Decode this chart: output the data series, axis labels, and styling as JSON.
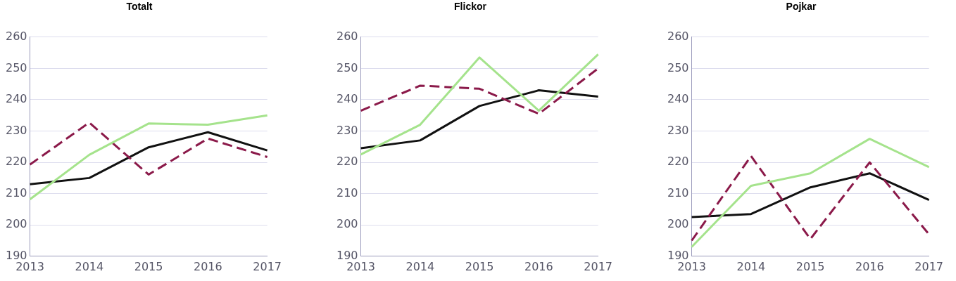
{
  "chart_data": [
    {
      "type": "line",
      "title": "Totalt",
      "categories": [
        "2013",
        "2014",
        "2015",
        "2016",
        "2017"
      ],
      "ylim": [
        190,
        260
      ],
      "yticks": [
        190,
        200,
        210,
        220,
        230,
        240,
        250,
        260
      ],
      "grid": "y",
      "legend": false,
      "marker": "none",
      "series": [
        {
          "color": "#a5e38c",
          "values": [
            208.2,
            222.4,
            232.4,
            232,
            235
          ]
        },
        {
          "color": "#8b1a4a",
          "line_style": "dashed",
          "values": [
            219.3,
            232.7,
            216.1,
            227.6,
            221.7
          ]
        },
        {
          "color": "#111111",
          "values": [
            213,
            215,
            224.8,
            229.6,
            223.8
          ]
        }
      ]
    },
    {
      "type": "line",
      "title": "Flickor",
      "categories": [
        "2013",
        "2014",
        "2015",
        "2016",
        "2017"
      ],
      "ylim": [
        190,
        260
      ],
      "yticks": [
        190,
        200,
        210,
        220,
        230,
        240,
        250,
        260
      ],
      "grid": "y",
      "legend": false,
      "marker": "none",
      "series": [
        {
          "color": "#a5e38c",
          "values": [
            222.5,
            232,
            253.5,
            236.5,
            254.5
          ]
        },
        {
          "color": "#8b1a4a",
          "line_style": "dashed",
          "values": [
            236.5,
            244.5,
            243.5,
            235.5,
            250
          ]
        },
        {
          "color": "#111111",
          "values": [
            224.5,
            227,
            238,
            243,
            241
          ]
        }
      ]
    },
    {
      "type": "line",
      "title": "Pojkar",
      "categories": [
        "2013",
        "2014",
        "2015",
        "2016",
        "2017"
      ],
      "ylim": [
        190,
        260
      ],
      "yticks": [
        190,
        200,
        210,
        220,
        230,
        240,
        250,
        260
      ],
      "grid": "y",
      "legend": false,
      "marker": "none",
      "series": [
        {
          "color": "#a5e38c",
          "values": [
            193,
            212.5,
            216.5,
            227.5,
            218.5
          ]
        },
        {
          "color": "#8b1a4a",
          "line_style": "dashed",
          "values": [
            195,
            222,
            195.5,
            220,
            197
          ]
        },
        {
          "color": "#111111",
          "values": [
            202.5,
            203.5,
            212,
            216.5,
            208
          ]
        }
      ]
    }
  ]
}
